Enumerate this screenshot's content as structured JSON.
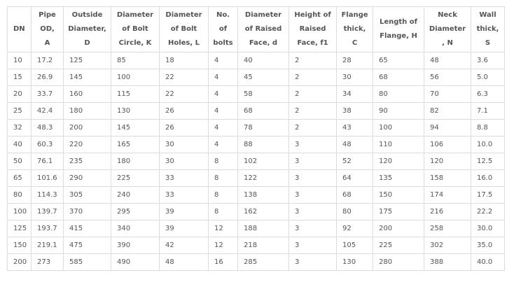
{
  "table": {
    "header": [
      [
        "DN"
      ],
      [
        "Pipe",
        "OD,",
        "A"
      ],
      [
        "Outside",
        "Diameter,",
        "D"
      ],
      [
        "Diameter",
        "of Bolt",
        "Circle, K"
      ],
      [
        "Diameter",
        "of Bolt",
        "Holes, L"
      ],
      [
        "No.",
        "of",
        "bolts"
      ],
      [
        "Diameter",
        "of Raised",
        "Face, d"
      ],
      [
        "Height of",
        "Raised",
        "Face, f1"
      ],
      [
        "Flange",
        "thick,",
        "C"
      ],
      [
        "Length of",
        "Flange, H"
      ],
      [
        "Neck",
        "Diameter",
        ", N"
      ],
      [
        "Wall",
        "thick,",
        "S"
      ]
    ],
    "rows": [
      [
        "10",
        "17.2",
        "125",
        "85",
        "18",
        "4",
        "40",
        "2",
        "28",
        "65",
        "48",
        "3.6"
      ],
      [
        "15",
        "26.9",
        "145",
        "100",
        "22",
        "4",
        "45",
        "2",
        "30",
        "68",
        "56",
        "5.0"
      ],
      [
        "20",
        "33.7",
        "160",
        "115",
        "22",
        "4",
        "58",
        "2",
        "34",
        "80",
        "70",
        "6.3"
      ],
      [
        "25",
        "42.4",
        "180",
        "130",
        "26",
        "4",
        "68",
        "2",
        "38",
        "90",
        "82",
        "7.1"
      ],
      [
        "32",
        "48.3",
        "200",
        "145",
        "26",
        "4",
        "78",
        "2",
        "43",
        "100",
        "94",
        "8.8"
      ],
      [
        "40",
        "60.3",
        "220",
        "165",
        "30",
        "4",
        "88",
        "3",
        "48",
        "110",
        "106",
        "10.0"
      ],
      [
        "50",
        "76.1",
        "235",
        "180",
        "30",
        "8",
        "102",
        "3",
        "52",
        "120",
        "120",
        "12.5"
      ],
      [
        "65",
        "101.6",
        "290",
        "225",
        "33",
        "8",
        "122",
        "3",
        "64",
        "135",
        "158",
        "16.0"
      ],
      [
        "80",
        "114.3",
        "305",
        "240",
        "33",
        "8",
        "138",
        "3",
        "68",
        "150",
        "174",
        "17.5"
      ],
      [
        "100",
        "139.7",
        "370",
        "295",
        "39",
        "8",
        "162",
        "3",
        "80",
        "175",
        "216",
        "22.2"
      ],
      [
        "125",
        "193.7",
        "415",
        "340",
        "39",
        "12",
        "188",
        "3",
        "92",
        "200",
        "258",
        "30.0"
      ],
      [
        "150",
        "219.1",
        "475",
        "390",
        "42",
        "12",
        "218",
        "3",
        "105",
        "225",
        "302",
        "35.0"
      ],
      [
        "200",
        "273",
        "585",
        "490",
        "48",
        "16",
        "285",
        "3",
        "130",
        "280",
        "388",
        "40.0"
      ]
    ]
  }
}
